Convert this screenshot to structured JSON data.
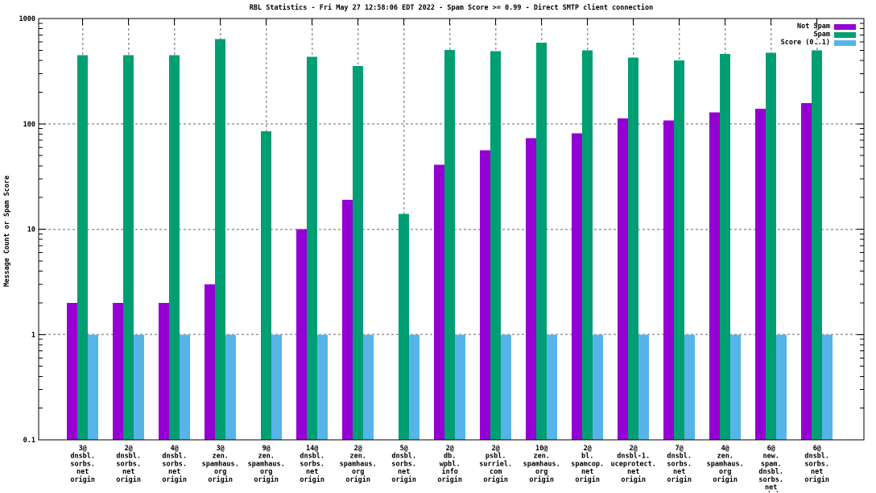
{
  "colors": {
    "background": "#ffffff",
    "axis": "#000000",
    "grid": "#9a9a9a",
    "not_spam": "#9400d3",
    "spam": "#009e73",
    "score": "#56b4e9"
  },
  "chart_data": {
    "type": "bar",
    "title": "RBL Statistics - Fri May 27 12:58:06 EDT 2022 - Spam Score >= 0.99 - Direct SMTP client connection",
    "ylabel": "Message Count or Spam Score",
    "xlabel": "",
    "yscale": "log",
    "ylim": [
      0.1,
      1000
    ],
    "ytick_labels": [
      "0.1",
      "1",
      "10",
      "100",
      "1000"
    ],
    "grid": true,
    "legend_position": "top-right-inside",
    "categories": [
      [
        "3@",
        "dnsbl.",
        "sorbs.",
        "net",
        "origin"
      ],
      [
        "2@",
        "dnsbl.",
        "sorbs.",
        "net",
        "origin"
      ],
      [
        "4@",
        "dnsbl.",
        "sorbs.",
        "net",
        "origin"
      ],
      [
        "3@",
        "zen.",
        "spamhaus.",
        "org",
        "origin"
      ],
      [
        "9@",
        "zen.",
        "spamhaus.",
        "org",
        "origin"
      ],
      [
        "14@",
        "dnsbl.",
        "sorbs.",
        "net",
        "origin"
      ],
      [
        "2@",
        "zen.",
        "spamhaus.",
        "org",
        "origin"
      ],
      [
        "5@",
        "dnsbl.",
        "sorbs.",
        "net",
        "origin"
      ],
      [
        "2@",
        "db.",
        "wpbl.",
        "info",
        "origin"
      ],
      [
        "2@",
        "psbl.",
        "surriel.",
        "com",
        "origin"
      ],
      [
        "10@",
        "zen.",
        "spamhaus.",
        "org",
        "origin"
      ],
      [
        "2@",
        "bl.",
        "spamcop.",
        "net",
        "origin"
      ],
      [
        "2@",
        "dnsbl-1.",
        "uceprotect.",
        "net",
        "origin"
      ],
      [
        "7@",
        "dnsbl.",
        "sorbs.",
        "net",
        "origin"
      ],
      [
        "4@",
        "zen.",
        "spamhaus.",
        "org",
        "origin"
      ],
      [
        "6@",
        "new.",
        "spam.",
        "dnsbl.",
        "sorbs.",
        "net",
        "origin"
      ],
      [
        "6@",
        "dnsbl.",
        "sorbs.",
        "net",
        "origin"
      ]
    ],
    "series": [
      {
        "name": "Not Spam",
        "color": "#9400d3",
        "values": [
          2,
          2,
          2,
          3,
          0,
          10,
          19,
          0,
          41,
          56,
          73,
          81,
          113,
          108,
          129,
          139,
          158
        ]
      },
      {
        "name": "Spam",
        "color": "#009e73",
        "values": [
          450,
          450,
          450,
          640,
          85,
          435,
          355,
          14,
          505,
          490,
          590,
          500,
          425,
          400,
          460,
          475,
          500
        ]
      },
      {
        "name": "Score (0..1)",
        "color": "#56b4e9",
        "values": [
          1,
          1,
          1,
          1,
          1,
          1,
          1,
          1,
          1,
          1,
          1,
          1,
          1,
          1,
          1,
          1,
          1
        ]
      }
    ]
  }
}
